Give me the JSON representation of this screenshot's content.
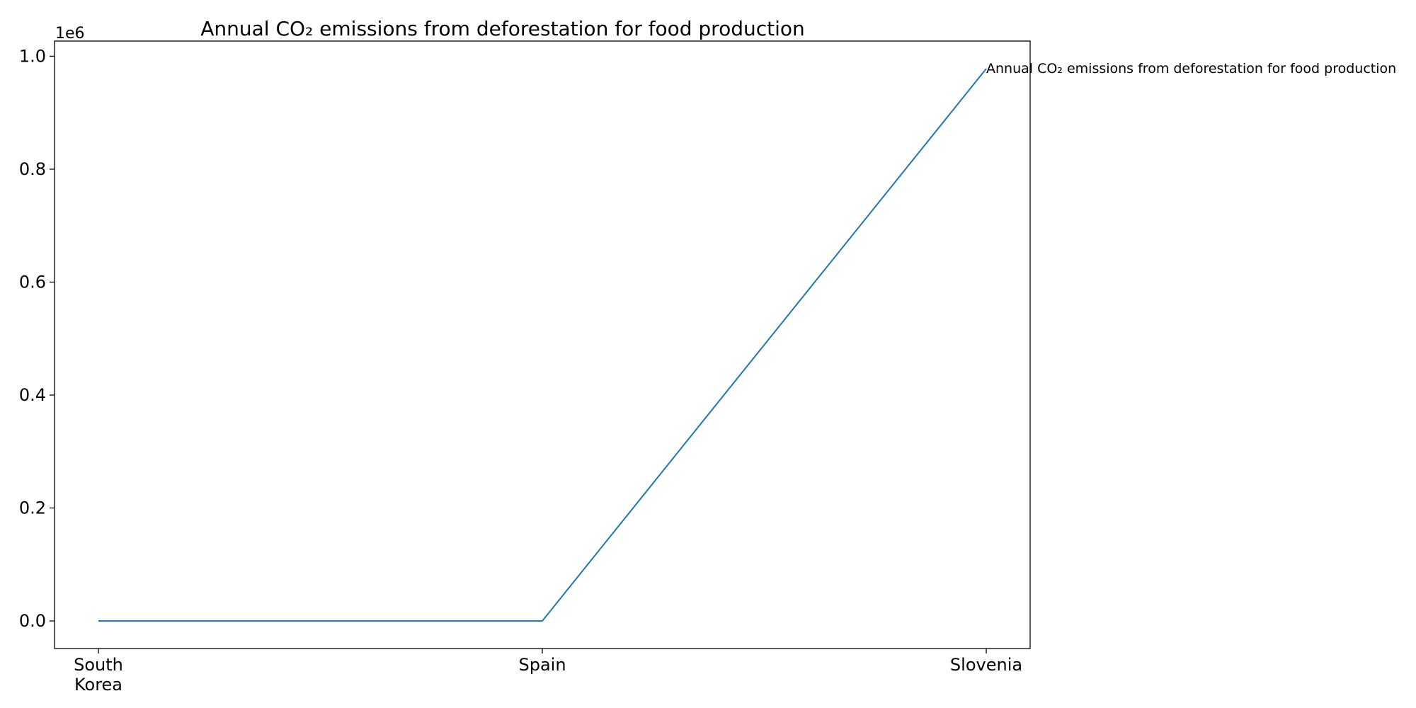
{
  "chart_data": {
    "type": "line",
    "title": "Annual CO₂ emissions from deforestation for food production",
    "xlabel": "",
    "ylabel": "",
    "categories": [
      "South Korea",
      "Spain",
      "Slovenia"
    ],
    "tick_label_lines": [
      [
        "South",
        "Korea"
      ],
      [
        "Spain"
      ],
      [
        "Slovenia"
      ]
    ],
    "series": [
      {
        "name": "Annual CO₂ emissions from deforestation for food production",
        "values": [
          0,
          0,
          978000
        ]
      }
    ],
    "y_scale_note": "1e6",
    "y_ticks": [
      0,
      200000,
      400000,
      600000,
      800000,
      1000000
    ],
    "y_tick_labels": [
      "0.0",
      "0.2",
      "0.4",
      "0.6",
      "0.8",
      "1.0"
    ],
    "ylim": [
      -48900,
      1026900
    ],
    "grid": false,
    "legend": "none",
    "line_color": "#1f77b4",
    "axis_color": "#000000"
  }
}
